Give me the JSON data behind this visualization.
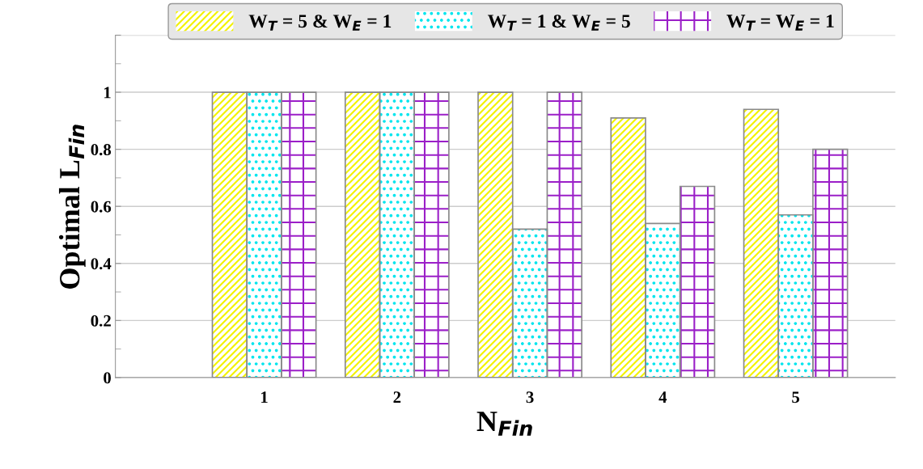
{
  "chart_data": {
    "type": "bar",
    "xlabel": "N$_{Fin}$",
    "ylabel": "Optimal L$_{Fin}$",
    "categories": [
      "1",
      "2",
      "3",
      "4",
      "5"
    ],
    "series": [
      {
        "name": "W$_{T}$ = 5 & W$_{E}$ = 1",
        "color": "#f2f200",
        "values": [
          1,
          1,
          1,
          0.91,
          0.94
        ]
      },
      {
        "name": "W$_{T}$ = 1 & W$_{E}$ = 5",
        "color": "#00e5ee",
        "values": [
          1,
          1,
          0.52,
          0.54,
          0.57
        ]
      },
      {
        "name": "W$_{T}$ = W$_{E}$ = 1",
        "color": "#9b1fc8",
        "values": [
          1,
          1,
          1,
          0.67,
          0.8
        ]
      }
    ],
    "ylim": [
      0,
      1.2
    ],
    "yticks": [
      0,
      0.2,
      0.4,
      0.6,
      0.8,
      1,
      {
        "value": 1.2,
        "label": null
      }
    ],
    "grid": "y",
    "legend": "top"
  }
}
